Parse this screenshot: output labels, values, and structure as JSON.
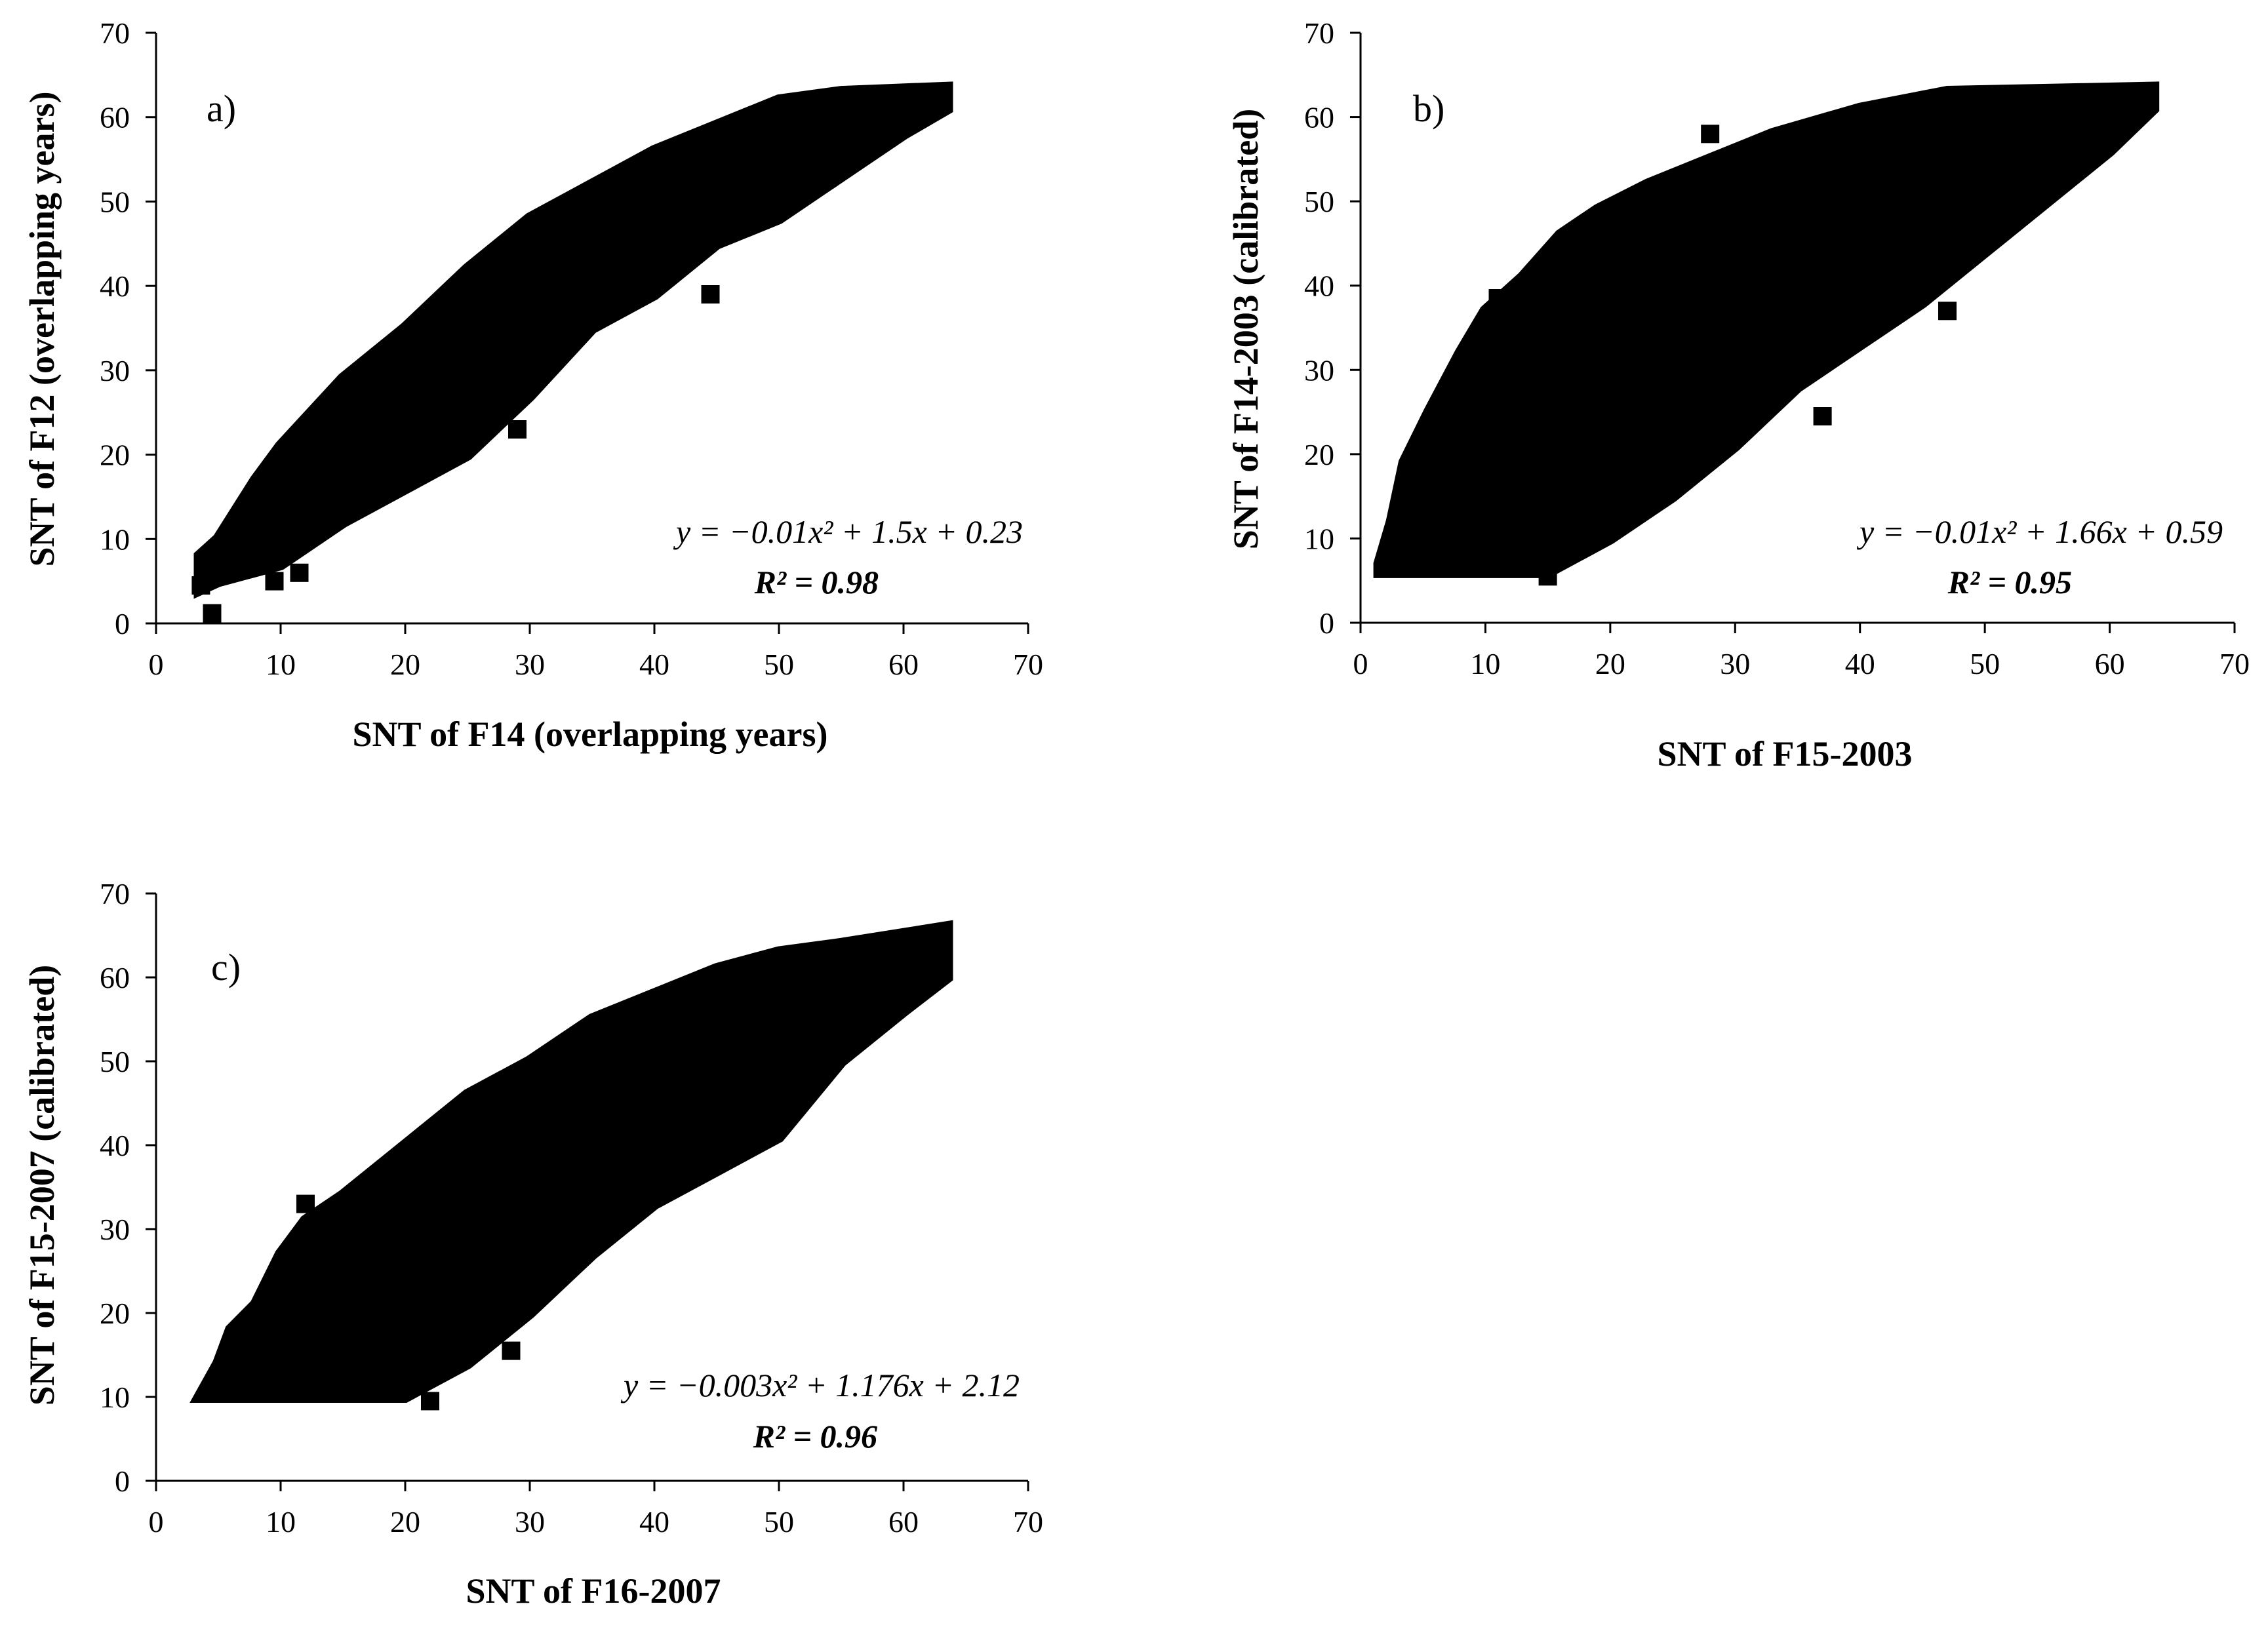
{
  "chart_data": [
    {
      "type": "scatter",
      "panel_label": "a)",
      "xlabel": "SNT of F14 (overlapping years)",
      "ylabel": "SNT of F12 (overlapping years)",
      "xlim": [
        0,
        70
      ],
      "ylim": [
        0,
        70
      ],
      "xticks": [
        "0",
        "10",
        "20",
        "30",
        "40",
        "50",
        "60",
        "70"
      ],
      "yticks": [
        "0",
        "10",
        "20",
        "30",
        "40",
        "50",
        "60",
        "70"
      ],
      "grid": false,
      "marker_color": "#000000",
      "equation": "y = −0.01x² + 1.5x + 0.23",
      "r_squared": "R² = 0.98",
      "fit": {
        "a": -0.01,
        "b": 1.5,
        "c": 0.23
      },
      "band_upper": [
        [
          3.5,
          8
        ],
        [
          5,
          10
        ],
        [
          8,
          17
        ],
        [
          10,
          21
        ],
        [
          15,
          29
        ],
        [
          20,
          35
        ],
        [
          25,
          42
        ],
        [
          30,
          48
        ],
        [
          35,
          52
        ],
        [
          40,
          56
        ],
        [
          45,
          59
        ],
        [
          50,
          62
        ],
        [
          55,
          63
        ],
        [
          63.5,
          63.5
        ]
      ],
      "band_lower": [
        [
          63.5,
          61
        ],
        [
          60,
          58
        ],
        [
          55,
          53
        ],
        [
          50,
          48
        ],
        [
          45,
          45
        ],
        [
          40,
          39
        ],
        [
          35,
          35
        ],
        [
          30,
          27
        ],
        [
          25,
          20
        ],
        [
          20,
          16
        ],
        [
          15,
          12
        ],
        [
          10,
          7
        ],
        [
          5,
          5
        ],
        [
          3.5,
          4
        ]
      ],
      "outliers": [
        [
          4.5,
          1.2
        ],
        [
          3.6,
          4.5
        ],
        [
          9.5,
          5
        ],
        [
          11.5,
          6
        ],
        [
          44.5,
          39
        ],
        [
          29,
          23
        ]
      ]
    },
    {
      "type": "scatter",
      "panel_label": "b)",
      "xlabel": "SNT of F15-2003",
      "ylabel": "SNT of F14-2003 (calibrated)",
      "xlim": [
        0,
        70
      ],
      "ylim": [
        0,
        70
      ],
      "xticks": [
        "0",
        "10",
        "20",
        "30",
        "40",
        "50",
        "60",
        "70"
      ],
      "yticks": [
        "0",
        "10",
        "20",
        "30",
        "40",
        "50",
        "60",
        "70"
      ],
      "grid": false,
      "marker_color": "#000000",
      "equation": "y = −0.01x² + 1.66x + 0.59",
      "r_squared": "R² = 0.95",
      "fit": {
        "a": -0.01,
        "b": 1.66,
        "c": 0.59
      },
      "band_upper": [
        [
          1.5,
          7
        ],
        [
          2.5,
          12
        ],
        [
          3.5,
          19
        ],
        [
          5.5,
          25
        ],
        [
          8,
          32
        ],
        [
          10,
          37
        ],
        [
          13,
          41
        ],
        [
          16,
          46
        ],
        [
          19,
          49
        ],
        [
          23,
          52
        ],
        [
          28,
          55
        ],
        [
          33,
          58
        ],
        [
          40,
          61
        ],
        [
          47,
          63
        ],
        [
          63.5,
          63.5
        ]
      ],
      "band_lower": [
        [
          63.5,
          61
        ],
        [
          60,
          56
        ],
        [
          55,
          50
        ],
        [
          50,
          44
        ],
        [
          45,
          38
        ],
        [
          40,
          33
        ],
        [
          35,
          28
        ],
        [
          30,
          21
        ],
        [
          25,
          15
        ],
        [
          20,
          10
        ],
        [
          15,
          6
        ],
        [
          10,
          6
        ],
        [
          1.5,
          6
        ]
      ],
      "outliers": [
        [
          28,
          58
        ],
        [
          37,
          24.5
        ],
        [
          47,
          37
        ],
        [
          15,
          5.5
        ],
        [
          11,
          38.5
        ]
      ]
    },
    {
      "type": "scatter",
      "panel_label": "c)",
      "xlabel": "SNT of F16-2007",
      "ylabel": "SNT of F15-2007 (calibrated)",
      "xlim": [
        0,
        70
      ],
      "ylim": [
        0,
        70
      ],
      "xticks": [
        "0",
        "10",
        "20",
        "30",
        "40",
        "50",
        "60",
        "70"
      ],
      "yticks": [
        "0",
        "10",
        "20",
        "30",
        "40",
        "50",
        "60",
        "70"
      ],
      "grid": false,
      "marker_color": "#000000",
      "equation": "y = −0.003x² + 1.176x + 2.12",
      "r_squared": "R² = 0.96",
      "fit": {
        "a": -0.003,
        "b": 1.176,
        "c": 2.12
      },
      "band_upper": [
        [
          3.5,
          10
        ],
        [
          5,
          14
        ],
        [
          6,
          18
        ],
        [
          8,
          21
        ],
        [
          10,
          27
        ],
        [
          12,
          31
        ],
        [
          15,
          34
        ],
        [
          20,
          40
        ],
        [
          25,
          46
        ],
        [
          30,
          50
        ],
        [
          35,
          55
        ],
        [
          40,
          58
        ],
        [
          45,
          61
        ],
        [
          50,
          63
        ],
        [
          55,
          64
        ],
        [
          63.5,
          66
        ]
      ],
      "band_lower": [
        [
          63.5,
          60
        ],
        [
          60,
          56
        ],
        [
          55,
          50
        ],
        [
          50,
          41
        ],
        [
          45,
          37
        ],
        [
          40,
          33
        ],
        [
          35,
          27
        ],
        [
          30,
          20
        ],
        [
          25,
          14
        ],
        [
          20,
          10
        ],
        [
          3.5,
          10
        ]
      ],
      "outliers": [
        [
          22,
          9.5
        ],
        [
          28.5,
          15.5
        ],
        [
          12,
          33
        ]
      ]
    }
  ]
}
